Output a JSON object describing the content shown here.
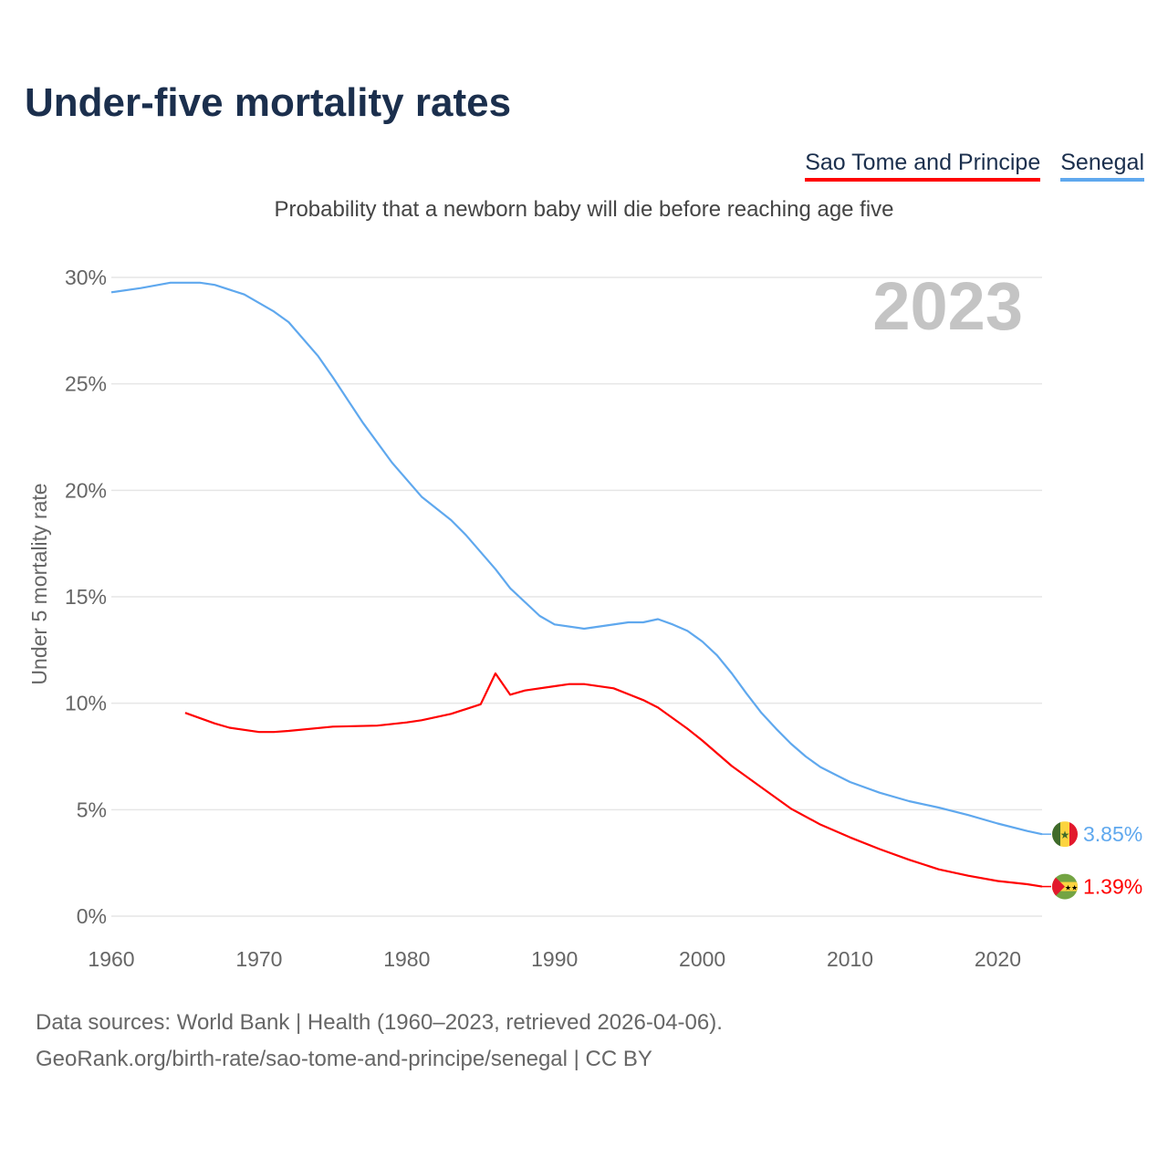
{
  "title": "Under-five mortality rates",
  "subtitle": "Probability that a newborn baby will die before reaching age five",
  "footer": {
    "line1": "Data sources: World Bank | Health (1960–2023, retrieved 2026-04-06).",
    "line2": "GeoRank.org/birth-rate/sao-tome-and-principe/senegal | CC BY"
  },
  "chart_data": {
    "type": "line",
    "title": "Under-five mortality rates",
    "xlabel": "",
    "ylabel": "Under 5 mortality rate",
    "year_label": "2023",
    "xlim": [
      1960,
      2023
    ],
    "ylim": [
      0,
      30
    ],
    "x_ticks": [
      "1960",
      "1970",
      "1980",
      "1990",
      "2000",
      "2010",
      "2020"
    ],
    "y_ticks": [
      "0%",
      "5%",
      "10%",
      "15%",
      "20%",
      "25%",
      "30%"
    ],
    "grid": true,
    "legend_position": "top-right",
    "series": [
      {
        "name": "Sao Tome and Principe",
        "color": "#ff0000",
        "end_label": "1.39%",
        "flag": "sao-tome-and-principe-flag",
        "x": [
          1965,
          1967,
          1968,
          1970,
          1971,
          1972,
          1975,
          1978,
          1980,
          1981,
          1983,
          1985,
          1986,
          1987,
          1988,
          1990,
          1991,
          1992,
          1994,
          1996,
          1997,
          1998,
          1999,
          2000,
          2002,
          2004,
          2006,
          2008,
          2010,
          2012,
          2014,
          2016,
          2018,
          2020,
          2022,
          2023
        ],
        "y": [
          9.55,
          9.05,
          8.85,
          8.65,
          8.65,
          8.7,
          8.9,
          8.95,
          9.1,
          9.2,
          9.5,
          9.95,
          11.4,
          10.4,
          10.6,
          10.8,
          10.9,
          10.9,
          10.7,
          10.15,
          9.8,
          9.3,
          8.8,
          8.25,
          7.05,
          6.05,
          5.05,
          4.3,
          3.7,
          3.15,
          2.65,
          2.2,
          1.9,
          1.65,
          1.5,
          1.39
        ]
      },
      {
        "name": "Senegal",
        "color": "#5fa8ee",
        "end_label": "3.85%",
        "flag": "senegal-flag",
        "x": [
          1960,
          1962,
          1964,
          1966,
          1967,
          1969,
          1971,
          1972,
          1974,
          1975,
          1977,
          1979,
          1981,
          1983,
          1984,
          1986,
          1987,
          1989,
          1990,
          1992,
          1995,
          1996,
          1997,
          1998,
          1999,
          2000,
          2001,
          2002,
          2003,
          2004,
          2005,
          2006,
          2007,
          2008,
          2009,
          2010,
          2012,
          2014,
          2016,
          2018,
          2020,
          2022,
          2023
        ],
        "y": [
          29.3,
          29.5,
          29.75,
          29.75,
          29.65,
          29.2,
          28.4,
          27.9,
          26.3,
          25.3,
          23.2,
          21.3,
          19.7,
          18.6,
          17.9,
          16.3,
          15.4,
          14.1,
          13.7,
          13.5,
          13.8,
          13.8,
          13.95,
          13.7,
          13.4,
          12.9,
          12.25,
          11.4,
          10.45,
          9.55,
          8.8,
          8.1,
          7.5,
          7.0,
          6.65,
          6.3,
          5.8,
          5.4,
          5.1,
          4.75,
          4.35,
          4.0,
          3.85
        ]
      }
    ]
  }
}
